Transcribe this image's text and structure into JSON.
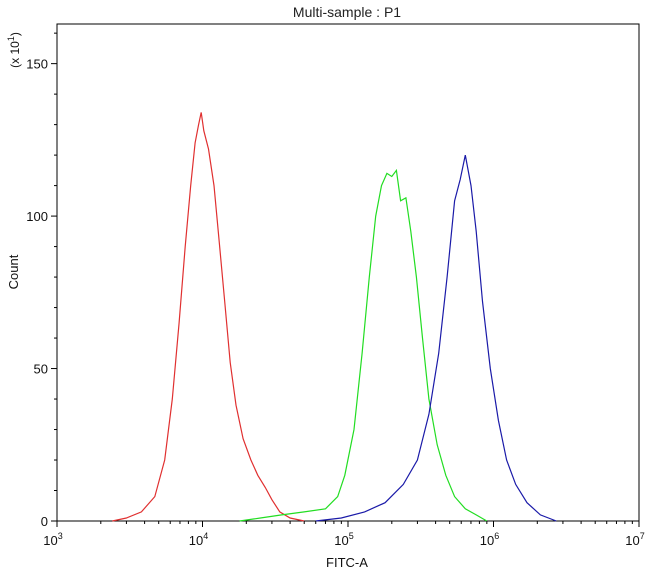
{
  "chart_data": {
    "type": "line",
    "title": "Multi-sample : P1",
    "xlabel": "FITC-A",
    "ylabel": "Count",
    "y_unit_label": "(x 10",
    "y_unit_exp": "1",
    "y_unit_close": ")",
    "xscale": "log",
    "xlim": [
      1000,
      10000000
    ],
    "ylim": [
      0,
      163
    ],
    "grid": false,
    "x_ticks": [
      {
        "base": "10",
        "exp": "3",
        "value": 1000
      },
      {
        "base": "10",
        "exp": "4",
        "value": 10000
      },
      {
        "base": "10",
        "exp": "5",
        "value": 100000
      },
      {
        "base": "10",
        "exp": "6",
        "value": 1000000
      },
      {
        "base": "10",
        "exp": "7",
        "value": 10000000
      }
    ],
    "y_ticks": [
      {
        "label": "0",
        "value": 0
      },
      {
        "label": "50",
        "value": 50
      },
      {
        "label": "100",
        "value": 100
      },
      {
        "label": "150",
        "value": 150
      }
    ],
    "series": [
      {
        "color": "#e03030",
        "points": [
          [
            2400,
            0
          ],
          [
            3000,
            1
          ],
          [
            3800,
            3
          ],
          [
            4700,
            8
          ],
          [
            5500,
            20
          ],
          [
            6200,
            40
          ],
          [
            6900,
            65
          ],
          [
            7600,
            90
          ],
          [
            8300,
            110
          ],
          [
            8900,
            124
          ],
          [
            9400,
            130
          ],
          [
            9800,
            134
          ],
          [
            10200,
            128
          ],
          [
            11000,
            122
          ],
          [
            12000,
            110
          ],
          [
            13000,
            92
          ],
          [
            14200,
            72
          ],
          [
            15500,
            52
          ],
          [
            17000,
            38
          ],
          [
            19000,
            27
          ],
          [
            21500,
            20
          ],
          [
            24000,
            15
          ],
          [
            27000,
            11
          ],
          [
            30000,
            7
          ],
          [
            34000,
            3
          ],
          [
            40000,
            1
          ],
          [
            50000,
            0
          ]
        ]
      },
      {
        "color": "#22dd22",
        "points": [
          [
            18000,
            0
          ],
          [
            25000,
            1
          ],
          [
            35000,
            2
          ],
          [
            50000,
            3
          ],
          [
            70000,
            4
          ],
          [
            85000,
            8
          ],
          [
            95000,
            15
          ],
          [
            110000,
            30
          ],
          [
            125000,
            55
          ],
          [
            140000,
            80
          ],
          [
            155000,
            100
          ],
          [
            170000,
            110
          ],
          [
            185000,
            114
          ],
          [
            200000,
            113
          ],
          [
            215000,
            115
          ],
          [
            230000,
            105
          ],
          [
            250000,
            106
          ],
          [
            270000,
            95
          ],
          [
            295000,
            80
          ],
          [
            325000,
            60
          ],
          [
            360000,
            40
          ],
          [
            410000,
            25
          ],
          [
            470000,
            15
          ],
          [
            540000,
            8
          ],
          [
            640000,
            4
          ],
          [
            760000,
            2
          ],
          [
            900000,
            0
          ]
        ]
      },
      {
        "color": "#1a1aa8",
        "points": [
          [
            60000,
            0
          ],
          [
            90000,
            1
          ],
          [
            130000,
            3
          ],
          [
            180000,
            6
          ],
          [
            240000,
            12
          ],
          [
            300000,
            20
          ],
          [
            360000,
            35
          ],
          [
            420000,
            55
          ],
          [
            480000,
            80
          ],
          [
            540000,
            105
          ],
          [
            590000,
            112
          ],
          [
            640000,
            120
          ],
          [
            700000,
            110
          ],
          [
            760000,
            95
          ],
          [
            840000,
            72
          ],
          [
            950000,
            50
          ],
          [
            1080000,
            33
          ],
          [
            1230000,
            20
          ],
          [
            1420000,
            12
          ],
          [
            1700000,
            6
          ],
          [
            2100000,
            2
          ],
          [
            2700000,
            0
          ]
        ]
      }
    ]
  }
}
